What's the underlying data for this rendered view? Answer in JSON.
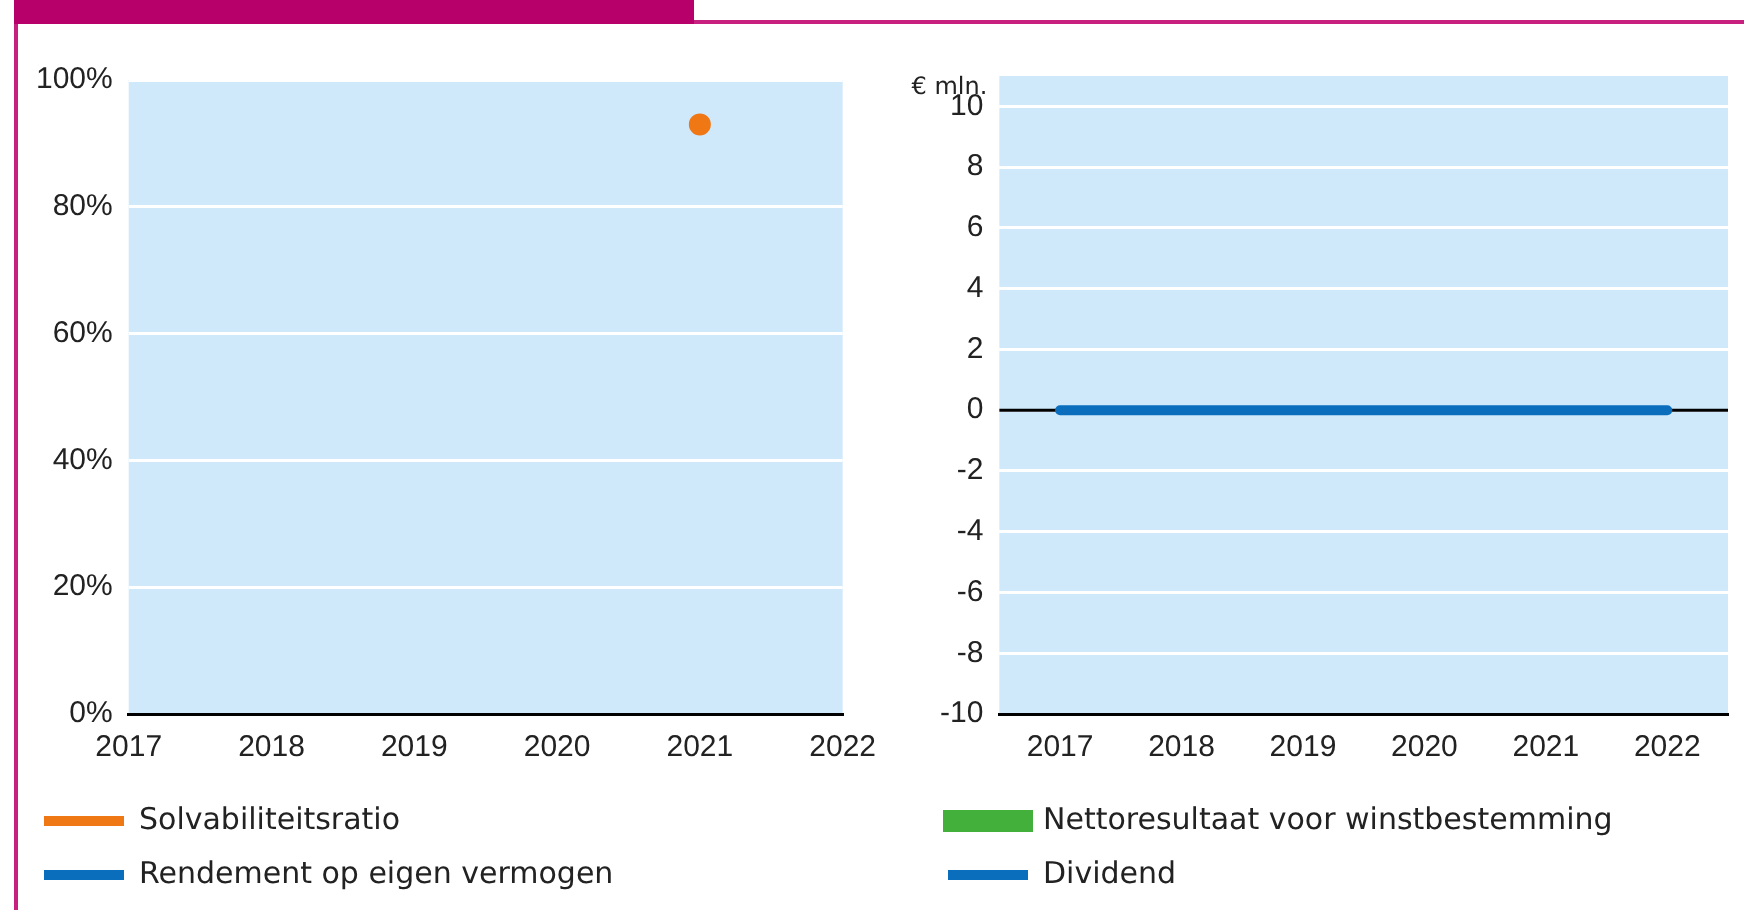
{
  "chart_data": [
    {
      "type": "line",
      "categories": [
        "2017",
        "2018",
        "2019",
        "2020",
        "2021",
        "2022"
      ],
      "ylim": [
        0,
        100
      ],
      "yticks": [
        {
          "value": 0,
          "label": "0%"
        },
        {
          "value": 20,
          "label": "20%"
        },
        {
          "value": 40,
          "label": "40%"
        },
        {
          "value": 60,
          "label": "60%"
        },
        {
          "value": 80,
          "label": "80%"
        },
        {
          "value": 100,
          "label": "100%"
        }
      ],
      "grid": "y",
      "legend": "bottom",
      "marker": "circle",
      "series": [
        {
          "name": "Solvabiliteitsratio",
          "type": "line",
          "color": "#f07814",
          "values": [
            null,
            null,
            null,
            null,
            93,
            null
          ]
        },
        {
          "name": "Rendement op eigen vermogen",
          "type": "line",
          "color": "#0a6ebd",
          "values": [
            null,
            null,
            null,
            null,
            null,
            null
          ]
        }
      ]
    },
    {
      "type": "bar",
      "categories": [
        "2017",
        "2018",
        "2019",
        "2020",
        "2021",
        "2022"
      ],
      "ylabel": "€ mln.",
      "ylim": [
        -10,
        11
      ],
      "yticks": [
        -10,
        -8,
        -6,
        -4,
        -2,
        0,
        2,
        4,
        6,
        8,
        10
      ],
      "grid": "y",
      "legend": "bottom",
      "ref_lines": [
        {
          "axis": "y",
          "value": 0,
          "color": "#000000"
        }
      ],
      "series": [
        {
          "name": "Nettoresultaat voor winstbestemming",
          "type": "bar",
          "color": "#44b03c",
          "values": [
            null,
            null,
            null,
            null,
            null,
            null
          ]
        },
        {
          "name": "Dividend",
          "type": "line",
          "color": "#0a6ebd",
          "values": [
            0,
            0,
            0,
            0,
            0,
            0
          ]
        }
      ]
    }
  ]
}
